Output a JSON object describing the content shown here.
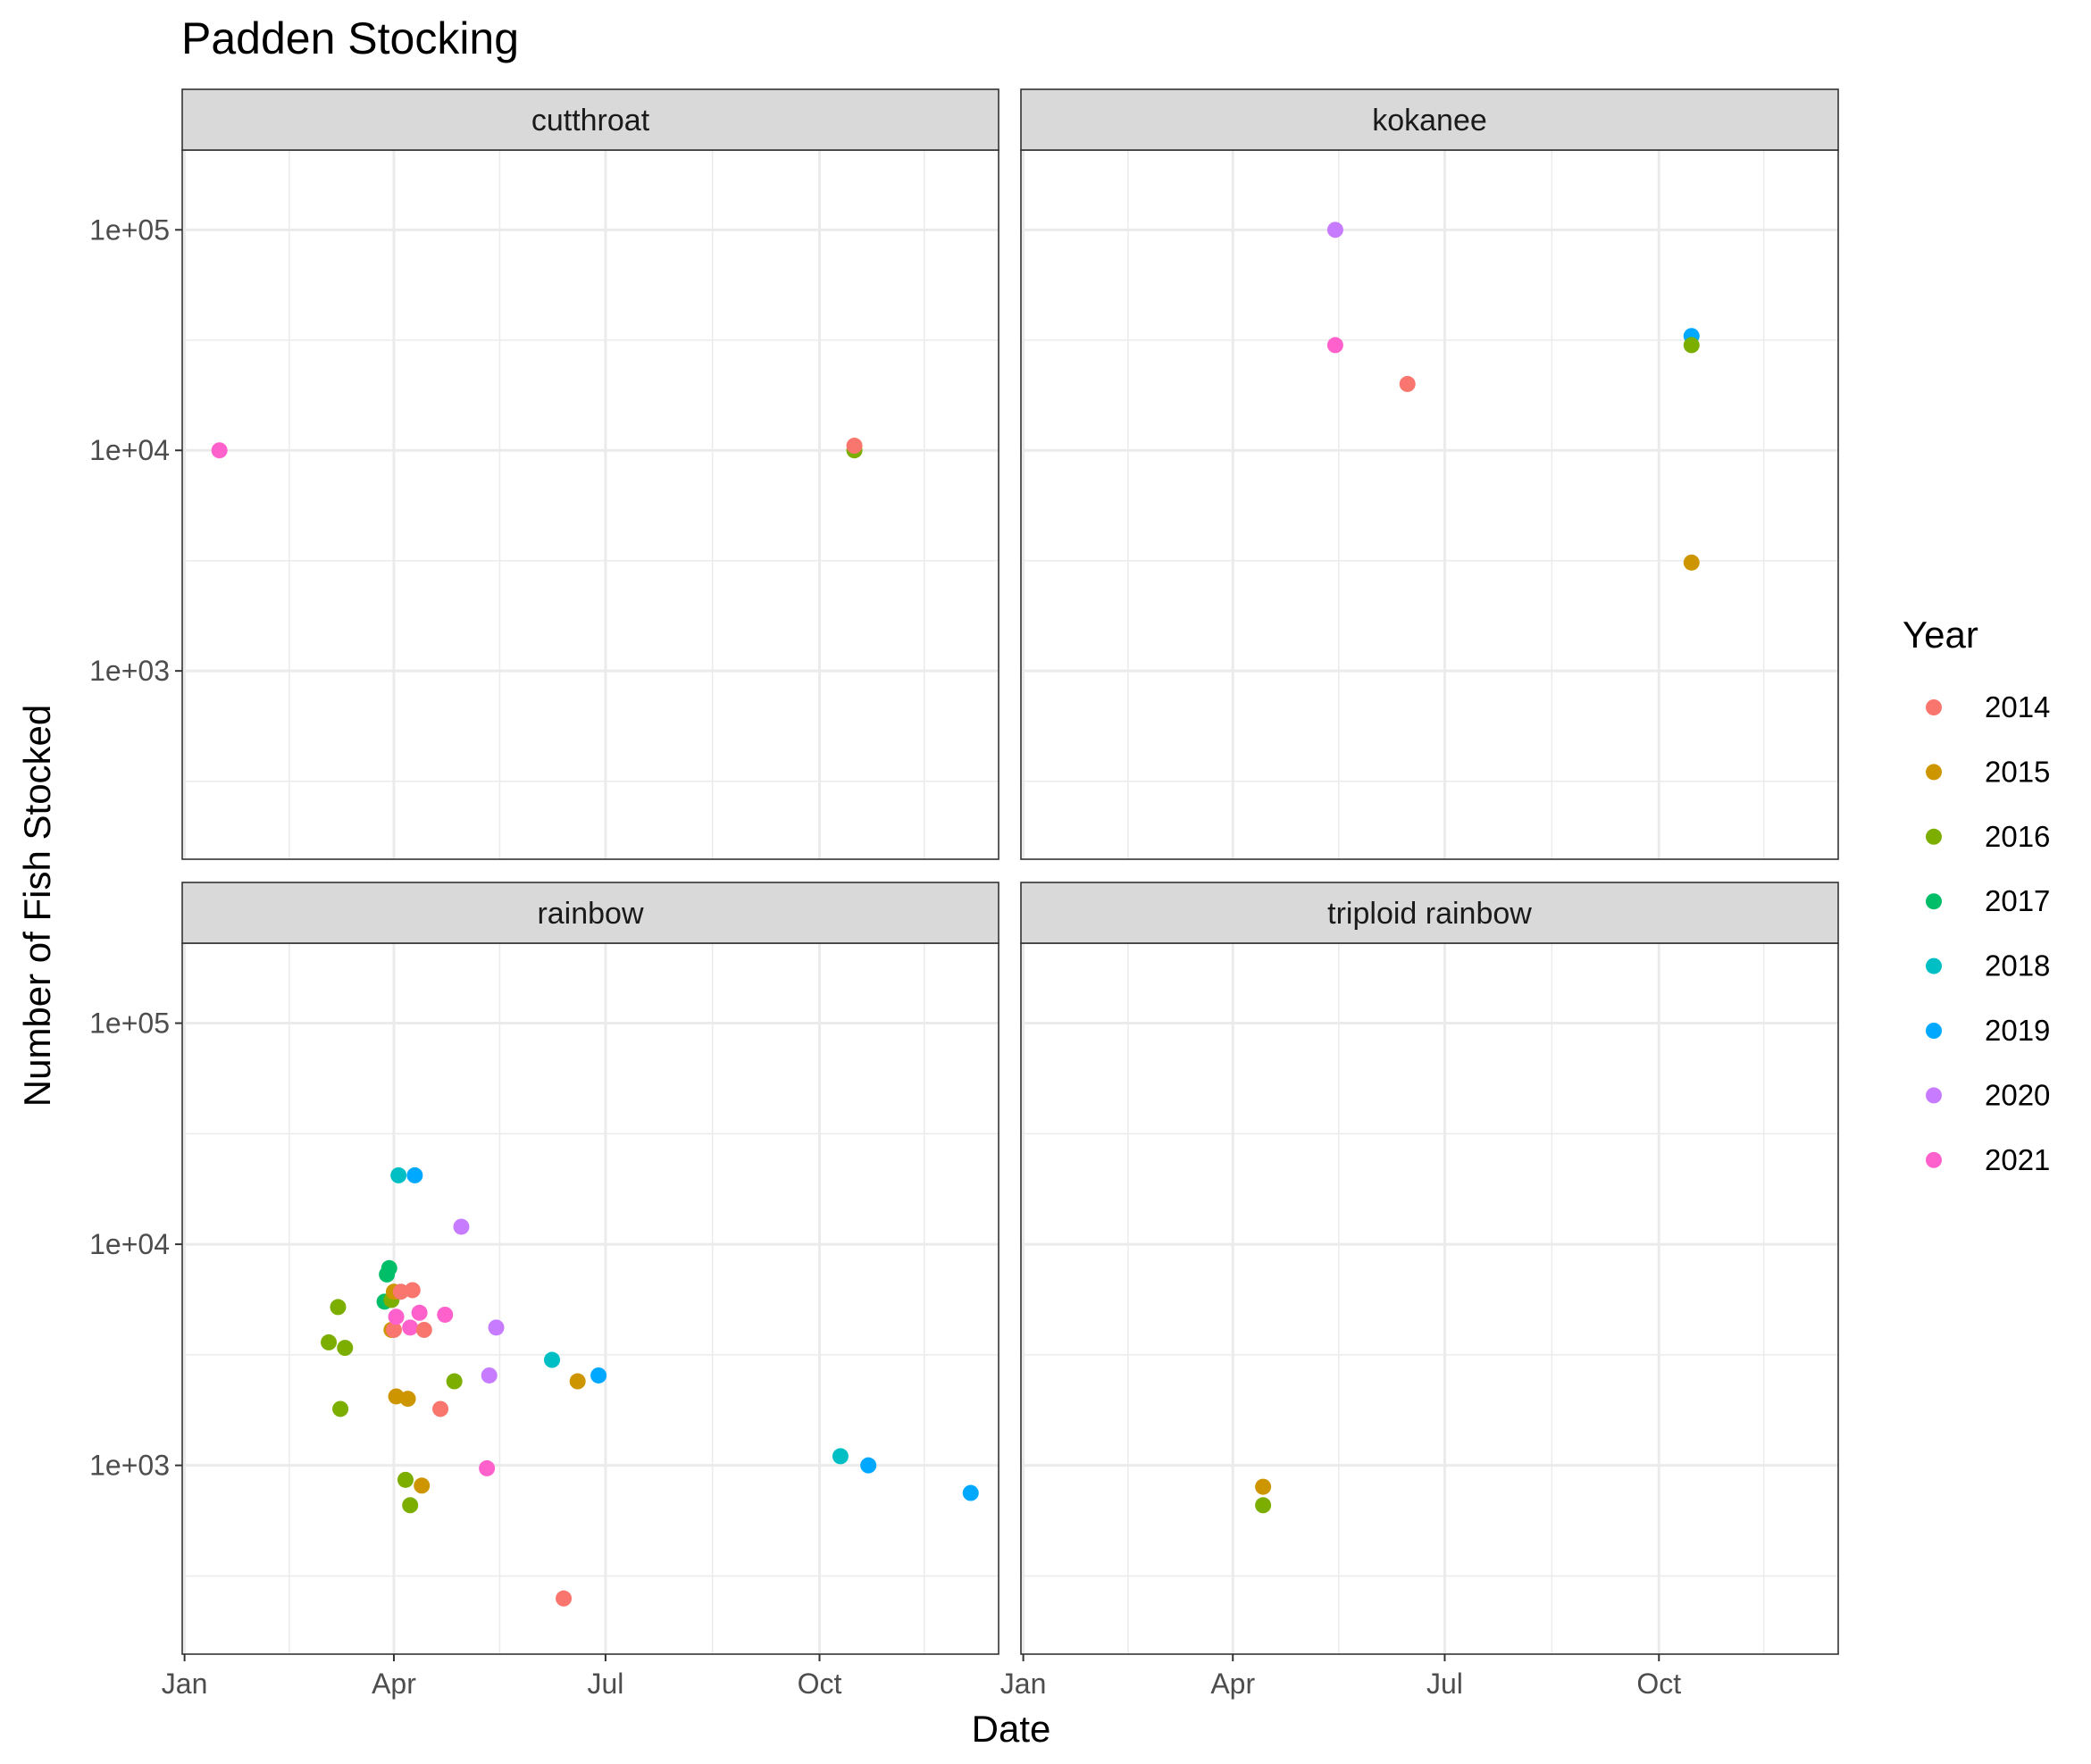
{
  "chart_data": {
    "type": "scatter",
    "title": "Padden Stocking",
    "xlabel": "Date",
    "ylabel": "Number of Fish Stocked",
    "y_scale": "log10",
    "ylim": [
      140,
      230000
    ],
    "xlim_doy": [
      -1,
      350
    ],
    "x_ticks": [
      {
        "label": "Jan",
        "doy": 0
      },
      {
        "label": "Apr",
        "doy": 90
      },
      {
        "label": "Jul",
        "doy": 181
      },
      {
        "label": "Oct",
        "doy": 273
      }
    ],
    "x_minor_doy": [
      45,
      135.5,
      227,
      318
    ],
    "y_ticks": [
      {
        "label": "1e+03",
        "value": 1000
      },
      {
        "label": "1e+04",
        "value": 10000
      },
      {
        "label": "1e+05",
        "value": 100000
      }
    ],
    "y_minor": [
      316,
      3162,
      31623
    ],
    "grid": true,
    "legend": {
      "title": "Year",
      "position": "right",
      "entries": [
        {
          "label": "2014",
          "color": "#F8766D"
        },
        {
          "label": "2015",
          "color": "#CD9600"
        },
        {
          "label": "2016",
          "color": "#7CAE00"
        },
        {
          "label": "2017",
          "color": "#00BE67"
        },
        {
          "label": "2018",
          "color": "#00BFC4"
        },
        {
          "label": "2019",
          "color": "#00A9FF"
        },
        {
          "label": "2020",
          "color": "#C77CFF"
        },
        {
          "label": "2021",
          "color": "#FF61CC"
        }
      ]
    },
    "panels": [
      {
        "label": "cutthroat",
        "points": [
          {
            "date": "01-16",
            "y": 10000,
            "year": "2021"
          },
          {
            "date": "10-16",
            "y": 10000,
            "year": "2016"
          },
          {
            "date": "10-16",
            "y": 10500,
            "year": "2014"
          }
        ]
      },
      {
        "label": "kokanee",
        "points": [
          {
            "date": "05-15",
            "y": 100000,
            "year": "2020"
          },
          {
            "date": "05-15",
            "y": 30000,
            "year": "2021"
          },
          {
            "date": "06-15",
            "y": 20000,
            "year": "2014"
          },
          {
            "date": "10-15",
            "y": 33000,
            "year": "2019"
          },
          {
            "date": "10-15",
            "y": 30000,
            "year": "2016"
          },
          {
            "date": "10-15",
            "y": 3100,
            "year": "2015"
          }
        ]
      },
      {
        "label": "rainbow",
        "points": [
          {
            "date": "03-04",
            "y": 3600,
            "year": "2016"
          },
          {
            "date": "03-08",
            "y": 5200,
            "year": "2016"
          },
          {
            "date": "03-09",
            "y": 1800,
            "year": "2016"
          },
          {
            "date": "03-11",
            "y": 3400,
            "year": "2016"
          },
          {
            "date": "03-28",
            "y": 5500,
            "year": "2017"
          },
          {
            "date": "03-29",
            "y": 7300,
            "year": "2017"
          },
          {
            "date": "03-30",
            "y": 7800,
            "year": "2017"
          },
          {
            "date": "03-31",
            "y": 5600,
            "year": "2016"
          },
          {
            "date": "03-31",
            "y": 4100,
            "year": "2015"
          },
          {
            "date": "04-01",
            "y": 6100,
            "year": "2015"
          },
          {
            "date": "04-01",
            "y": 4100,
            "year": "2014"
          },
          {
            "date": "04-02",
            "y": 4700,
            "year": "2021"
          },
          {
            "date": "04-02",
            "y": 2050,
            "year": "2015"
          },
          {
            "date": "04-03",
            "y": 20500,
            "year": "2018"
          },
          {
            "date": "04-04",
            "y": 6100,
            "year": "2014"
          },
          {
            "date": "04-06",
            "y": 860,
            "year": "2016"
          },
          {
            "date": "04-07",
            "y": 2000,
            "year": "2015"
          },
          {
            "date": "04-08",
            "y": 4200,
            "year": "2021"
          },
          {
            "date": "04-08",
            "y": 660,
            "year": "2016"
          },
          {
            "date": "04-09",
            "y": 6200,
            "year": "2014"
          },
          {
            "date": "04-10",
            "y": 20500,
            "year": "2019"
          },
          {
            "date": "04-12",
            "y": 4900,
            "year": "2021"
          },
          {
            "date": "04-13",
            "y": 810,
            "year": "2015"
          },
          {
            "date": "04-14",
            "y": 4100,
            "year": "2014"
          },
          {
            "date": "04-21",
            "y": 1800,
            "year": "2014"
          },
          {
            "date": "04-23",
            "y": 4800,
            "year": "2021"
          },
          {
            "date": "04-27",
            "y": 2400,
            "year": "2016"
          },
          {
            "date": "04-30",
            "y": 12000,
            "year": "2020"
          },
          {
            "date": "05-11",
            "y": 970,
            "year": "2021"
          },
          {
            "date": "05-12",
            "y": 2550,
            "year": "2020"
          },
          {
            "date": "05-15",
            "y": 4200,
            "year": "2020"
          },
          {
            "date": "06-08",
            "y": 3000,
            "year": "2018"
          },
          {
            "date": "06-13",
            "y": 250,
            "year": "2014"
          },
          {
            "date": "06-19",
            "y": 2400,
            "year": "2015"
          },
          {
            "date": "06-28",
            "y": 2550,
            "year": "2019"
          },
          {
            "date": "10-10",
            "y": 1100,
            "year": "2018"
          },
          {
            "date": "10-22",
            "y": 1000,
            "year": "2019"
          },
          {
            "date": "12-05",
            "y": 750,
            "year": "2019"
          }
        ]
      },
      {
        "label": "triploid rainbow",
        "points": [
          {
            "date": "04-14",
            "y": 800,
            "year": "2015"
          },
          {
            "date": "04-14",
            "y": 660,
            "year": "2016"
          }
        ]
      }
    ]
  }
}
